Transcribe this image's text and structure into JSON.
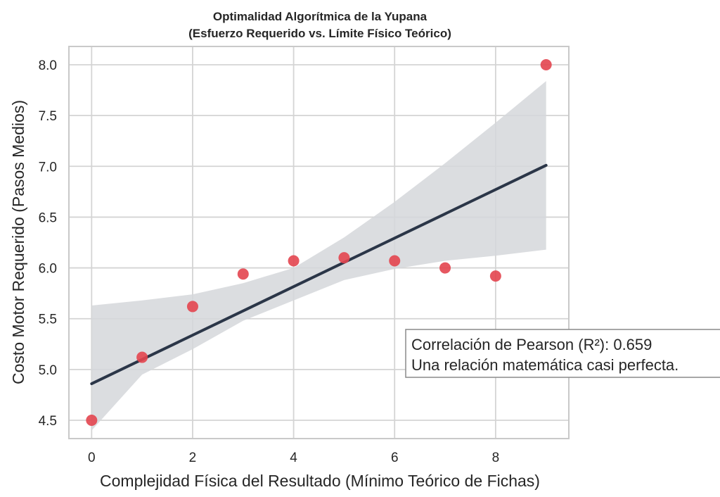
{
  "chart_data": {
    "type": "scatter",
    "title": [
      "Optimalidad Algorítmica de la Yupana",
      "(Esfuerzo Requerido vs. Límite Físico Teórico)"
    ],
    "xlabel": "Complejidad Física del Resultado (Mínimo Teórico de Fichas)",
    "ylabel": "Costo Motor Requerido (Pasos Medios)",
    "xlim": [
      -0.45,
      9.45
    ],
    "ylim": [
      4.32,
      8.18
    ],
    "x_ticks": [
      0,
      2,
      4,
      6,
      8
    ],
    "y_ticks": [
      4.5,
      5.0,
      5.5,
      6.0,
      6.5,
      7.0,
      7.5,
      8.0
    ],
    "x_tick_labels": [
      "0",
      "2",
      "4",
      "6",
      "8"
    ],
    "y_tick_labels": [
      "4.5",
      "5.0",
      "5.5",
      "6.0",
      "6.5",
      "7.0",
      "7.5",
      "8.0"
    ],
    "grid": true,
    "series": [
      {
        "x": [
          0,
          1,
          2,
          3,
          4,
          5,
          6,
          7,
          8,
          9
        ],
        "y": [
          4.5,
          5.12,
          5.62,
          5.94,
          6.07,
          6.1,
          6.07,
          6.0,
          5.92,
          8.0
        ],
        "color": "#e3454f"
      }
    ],
    "regression_line": {
      "x": [
        0,
        9
      ],
      "y": [
        4.86,
        7.01
      ],
      "color": "#2b3648"
    },
    "confidence_band": {
      "x": [
        0,
        1,
        2,
        3,
        4,
        5,
        6,
        7,
        8,
        9
      ],
      "upper": [
        5.63,
        5.68,
        5.74,
        5.85,
        6.0,
        6.3,
        6.65,
        7.03,
        7.43,
        7.84
      ],
      "lower": [
        4.4,
        4.95,
        5.2,
        5.48,
        5.68,
        5.88,
        5.99,
        6.07,
        6.12,
        6.18
      ],
      "color": "#d5d7da"
    },
    "annotation": {
      "lines": [
        "Correlación de Pearson (R²): 0.659",
        "Una relación matemática casi perfecta."
      ]
    }
  }
}
